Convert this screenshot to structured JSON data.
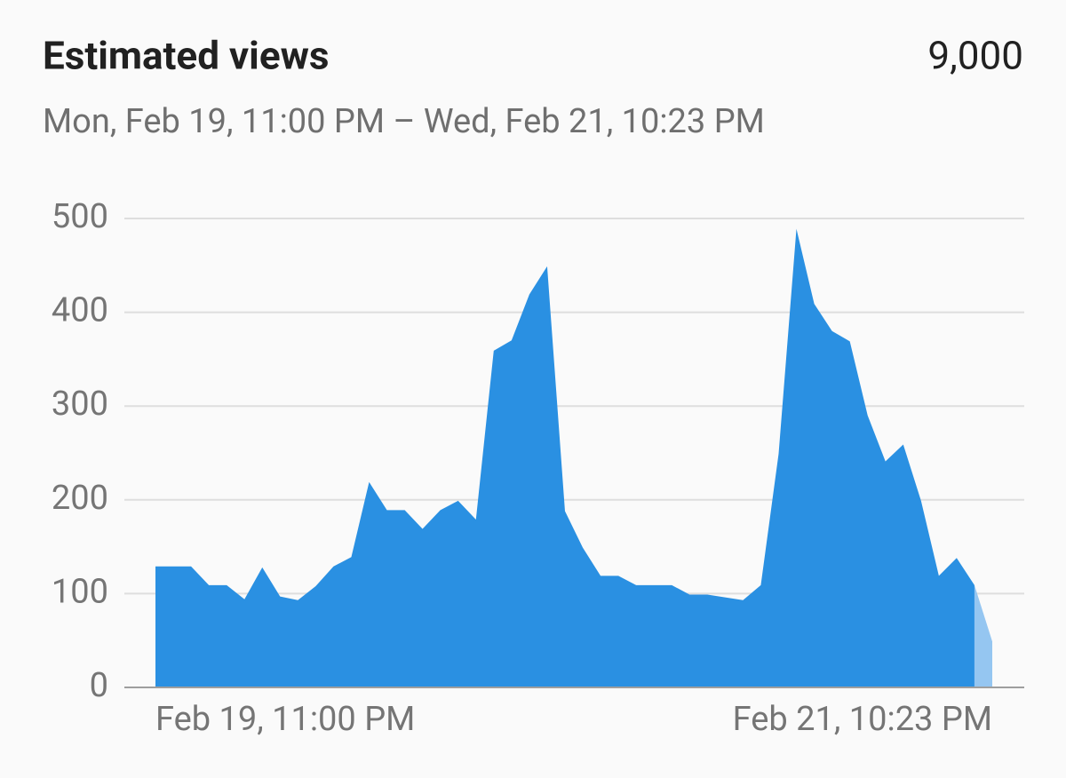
{
  "chart_data": {
    "type": "area",
    "title": "Estimated views",
    "total": "9,000",
    "subtitle": "Mon, Feb 19, 11:00 PM – Wed, Feb 21, 10:23 PM",
    "categories": [
      "Feb 19, 11:00 PM",
      null,
      null,
      null,
      null,
      null,
      null,
      null,
      null,
      null,
      null,
      null,
      null,
      null,
      null,
      null,
      null,
      null,
      null,
      null,
      null,
      null,
      null,
      null,
      null,
      null,
      null,
      null,
      null,
      null,
      null,
      null,
      null,
      null,
      null,
      null,
      null,
      null,
      null,
      null,
      null,
      null,
      null,
      null,
      null,
      null,
      null,
      "Feb 21, 10:23 PM"
    ],
    "values": [
      129,
      129,
      129,
      109,
      109,
      94,
      128,
      97,
      93,
      108,
      129,
      139,
      219,
      189,
      189,
      169,
      189,
      199,
      179,
      359,
      370,
      419,
      449,
      188,
      149,
      119,
      119,
      109,
      109,
      109,
      99,
      99,
      96,
      93,
      109,
      249,
      489,
      409,
      380,
      369,
      290,
      241,
      259,
      199,
      119,
      138,
      109,
      49
    ],
    "color": "#2a90e2",
    "partial_color": "#95c6f1",
    "ylim": [
      0,
      500
    ],
    "yticks": [
      0,
      100,
      200,
      300,
      400,
      500
    ],
    "grid": true
  }
}
